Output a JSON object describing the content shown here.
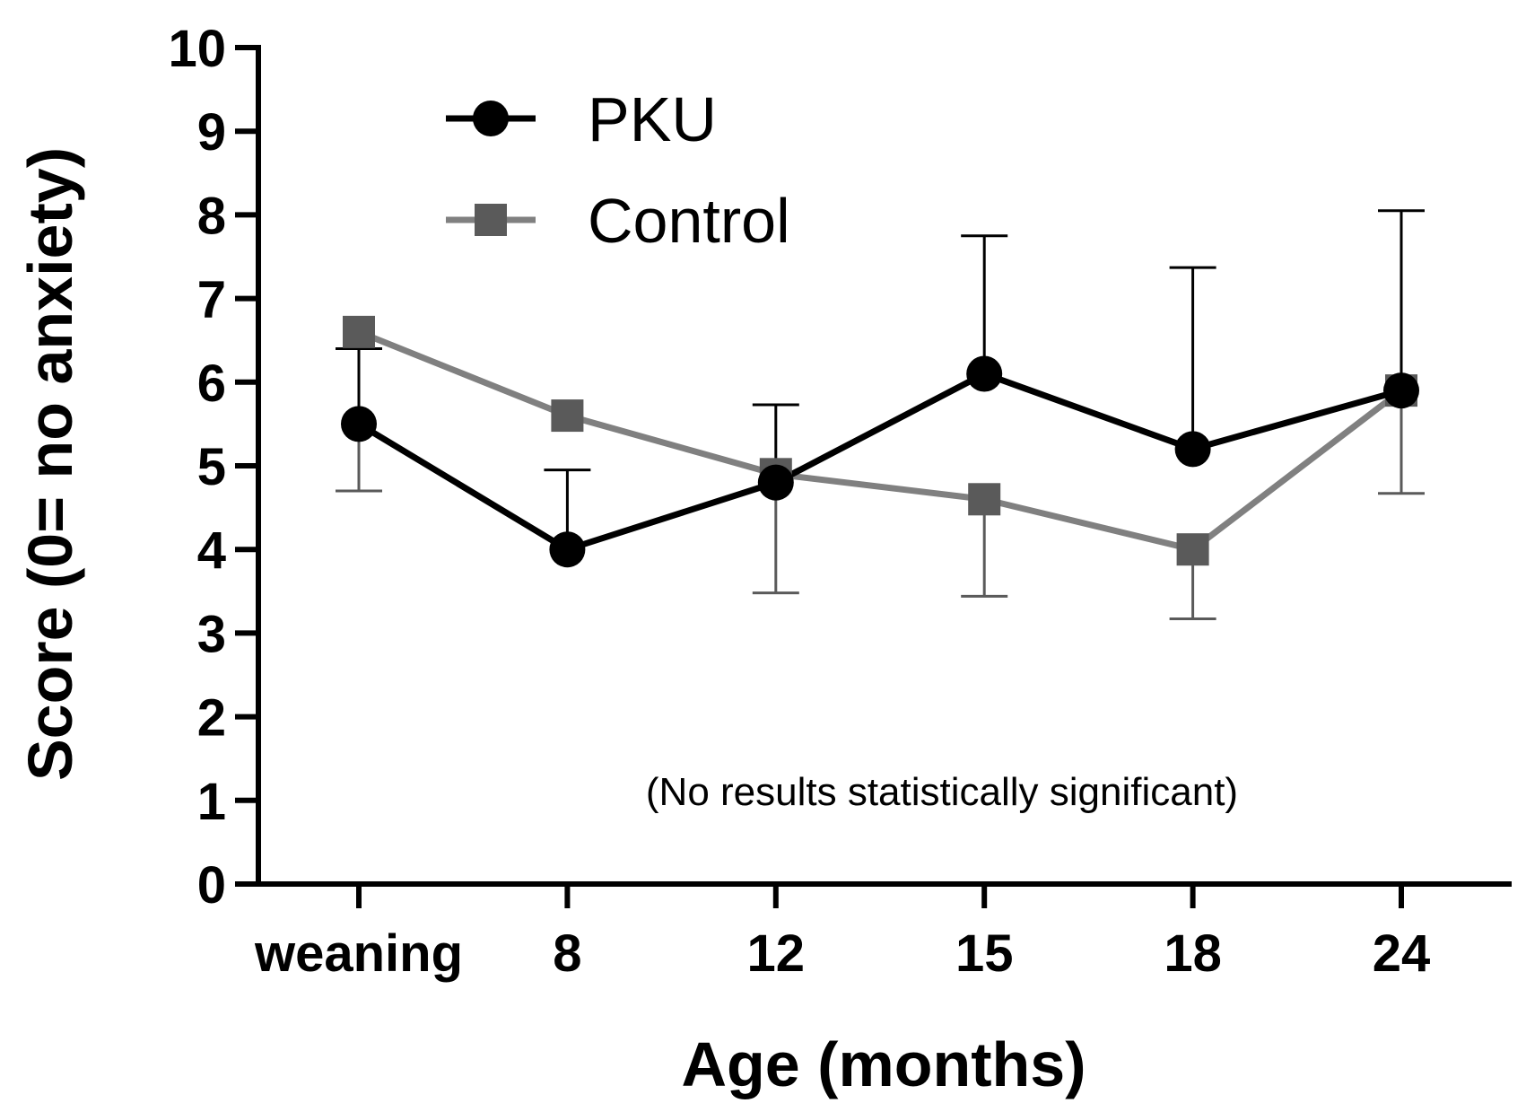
{
  "chart_data": {
    "type": "line",
    "title": "",
    "xlabel": "Age (months)",
    "ylabel": "Score (0= no anxiety)",
    "ylim": [
      0,
      10
    ],
    "yticks": [
      "0",
      "1",
      "2",
      "3",
      "4",
      "5",
      "6",
      "7",
      "8",
      "9",
      "10"
    ],
    "categories": [
      "weaning",
      "8",
      "12",
      "15",
      "18",
      "24"
    ],
    "annotation": "(No results statistically significant)",
    "legend_position": "top-left",
    "series": [
      {
        "name": "PKU",
        "marker": "circle",
        "color": "#000000",
        "values": [
          5.5,
          4.0,
          4.8,
          6.1,
          5.2,
          5.9
        ],
        "error_upper": [
          6.4,
          4.95,
          5.73,
          7.75,
          7.37,
          8.05
        ],
        "error_lower": [
          null,
          null,
          null,
          null,
          null,
          null
        ]
      },
      {
        "name": "Control",
        "marker": "square",
        "color": "#808080",
        "marker_color": "#5a5a5a",
        "values": [
          6.6,
          5.6,
          4.9,
          4.6,
          4.0,
          5.9
        ],
        "error_upper": [
          null,
          null,
          null,
          null,
          null,
          null
        ],
        "error_lower": [
          4.7,
          null,
          3.48,
          3.44,
          3.17,
          4.67
        ]
      }
    ]
  }
}
